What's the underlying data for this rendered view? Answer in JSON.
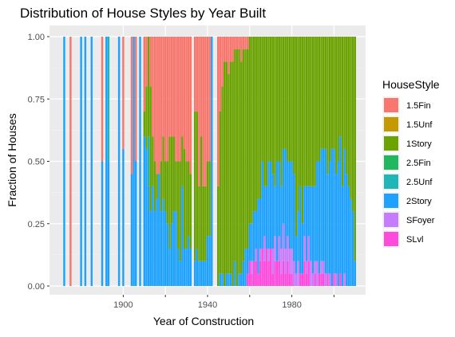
{
  "chart_data": {
    "type": "bar",
    "stacked": "fill",
    "title": "Distribution of House Styles by Year Built",
    "xlabel": "Year of Construction",
    "ylabel": "Fraction of Houses",
    "xlim": [
      1865,
      2015
    ],
    "ylim": [
      0,
      1
    ],
    "x_ticks": [
      1900,
      1920,
      1940,
      1960,
      1980,
      2000
    ],
    "x_tick_labels": [
      "1900",
      "",
      "1940",
      "",
      "1980",
      ""
    ],
    "y_ticks": [
      0,
      0.25,
      0.5,
      0.75,
      1
    ],
    "y_tick_labels": [
      "0.00",
      "0.25",
      "0.50",
      "0.75",
      "1.00"
    ],
    "grid": true,
    "legend_position": "right",
    "legend_title": "HouseStyle",
    "style_order": [
      "1.5Fin",
      "1.5Unf",
      "1Story",
      "2.5Fin",
      "2.5Unf",
      "2Story",
      "SFoyer",
      "SLvl"
    ],
    "series": [
      {
        "name": "1.5Fin",
        "color": "#F8766D"
      },
      {
        "name": "1.5Unf",
        "color": "#C49A00"
      },
      {
        "name": "1Story",
        "color": "#53B400"
      },
      {
        "name": "2.5Fin",
        "color": "#00C094"
      },
      {
        "name": "2.5Unf",
        "color": "#00B6EB"
      },
      {
        "name": "2Story",
        "color": "#A58AFF"
      },
      {
        "name": "SFoyer",
        "color": "#C77CFF"
      },
      {
        "name": "SLvl",
        "color": "#FB61D7"
      }
    ],
    "display_colors": {
      "1.5Fin": "#F8766D",
      "1.5Unf": "#C49A00",
      "1Story": "#6BA302",
      "2.5Fin": "#1FB85F",
      "2.5Unf": "#1FB6B9",
      "2Story": "#1EA2FF",
      "SFoyer": "#C77CFF",
      "SLvl": "#FF4BDD"
    },
    "bars": [
      {
        "year": 1872,
        "fractions": {
          "2Story": 1
        }
      },
      {
        "year": 1875,
        "fractions": {
          "1.5Fin": 1
        }
      },
      {
        "year": 1880,
        "fractions": {
          "2Story": 1
        }
      },
      {
        "year": 1882,
        "fractions": {
          "2Story": 1
        }
      },
      {
        "year": 1885,
        "fractions": {
          "2Story": 1
        }
      },
      {
        "year": 1890,
        "fractions": {
          "2Story": 0.5,
          "1.5Fin": 0.5
        }
      },
      {
        "year": 1892,
        "fractions": {
          "2Story": 1
        }
      },
      {
        "year": 1893,
        "fractions": {
          "2Story": 0.5,
          "2.5Unf": 0.5
        }
      },
      {
        "year": 1898,
        "fractions": {
          "2Story": 1
        }
      },
      {
        "year": 1900,
        "fractions": {
          "2Story": 0.55,
          "1.5Fin": 0.45
        }
      },
      {
        "year": 1904,
        "fractions": {
          "2Story": 0.45,
          "1.5Fin": 0.55
        }
      },
      {
        "year": 1905,
        "fractions": {
          "2Story": 1
        }
      },
      {
        "year": 1906,
        "fractions": {
          "2Story": 0.5,
          "1.5Fin": 0.5
        }
      },
      {
        "year": 1908,
        "fractions": {
          "2Story": 1
        }
      },
      {
        "year": 1910,
        "fractions": {
          "2Story": 0.6,
          "1.5Fin": 0.3,
          "1Story": 0.1
        }
      },
      {
        "year": 1911,
        "fractions": {
          "2Story": 0.55,
          "1Story": 0.25,
          "1.5Fin": 0.2
        }
      },
      {
        "year": 1912,
        "fractions": {
          "2Story": 0.4,
          "1Story": 0.4,
          "2.5Unf": 0.2
        }
      },
      {
        "year": 1913,
        "fractions": {
          "1Story": 0.5,
          "1.5Fin": 0.2,
          "2Story": 0.3
        }
      },
      {
        "year": 1914,
        "fractions": {
          "2Story": 0.4,
          "1Story": 0.2,
          "1.5Fin": 0.4
        }
      },
      {
        "year": 1915,
        "fractions": {
          "2Story": 0.3,
          "1Story": 0.2,
          "1.5Fin": 0.5
        }
      },
      {
        "year": 1916,
        "fractions": {
          "2Story": 0.35,
          "1Story": 0.1,
          "1.5Fin": 0.55
        }
      },
      {
        "year": 1917,
        "fractions": {
          "2Story": 0.45,
          "1.5Fin": 0.55
        }
      },
      {
        "year": 1918,
        "fractions": {
          "2Story": 0.3,
          "1Story": 0.2,
          "1.5Fin": 0.5
        }
      },
      {
        "year": 1919,
        "fractions": {
          "2Story": 0.35,
          "1Story": 0.25,
          "1.5Fin": 0.4
        }
      },
      {
        "year": 1920,
        "fractions": {
          "2Story": 0.3,
          "1Story": 0.2,
          "1.5Fin": 0.5
        }
      },
      {
        "year": 1921,
        "fractions": {
          "2Story": 0.25,
          "1Story": 0.25,
          "1.5Fin": 0.5
        }
      },
      {
        "year": 1922,
        "fractions": {
          "2Story": 0.15,
          "1Story": 0.45,
          "1.5Fin": 0.4
        }
      },
      {
        "year": 1923,
        "fractions": {
          "2Story": 0.25,
          "1Story": 0.35,
          "1.5Fin": 0.4
        }
      },
      {
        "year": 1924,
        "fractions": {
          "2Story": 0.3,
          "1Story": 0.3,
          "1.5Fin": 0.4
        }
      },
      {
        "year": 1925,
        "fractions": {
          "2Story": 0.3,
          "1Story": 0.2,
          "1.5Fin": 0.5
        }
      },
      {
        "year": 1926,
        "fractions": {
          "2Story": 0.15,
          "1Story": 0.35,
          "1.5Fin": 0.5
        }
      },
      {
        "year": 1927,
        "fractions": {
          "2Story": 0.1,
          "1Story": 0.4,
          "1.5Fin": 0.5
        }
      },
      {
        "year": 1928,
        "fractions": {
          "2Story": 0.4,
          "1Story": 0.2,
          "1.5Fin": 0.4
        }
      },
      {
        "year": 1929,
        "fractions": {
          "2Story": 0.15,
          "1Story": 0.4,
          "1.5Fin": 0.45
        }
      },
      {
        "year": 1930,
        "fractions": {
          "2Story": 0.15,
          "1Story": 0.35,
          "1.5Fin": 0.5
        }
      },
      {
        "year": 1931,
        "fractions": {
          "2Story": 0.2,
          "1Story": 0.3,
          "1.5Fin": 0.5
        }
      },
      {
        "year": 1932,
        "fractions": {
          "2Story": 0.15,
          "1Story": 0.3,
          "1.5Fin": 0.55
        }
      },
      {
        "year": 1934,
        "fractions": {
          "2Story": 0.1,
          "1Story": 0.6,
          "1.5Fin": 0.3
        }
      },
      {
        "year": 1935,
        "fractions": {
          "2Story": 0.15,
          "1Story": 0.55,
          "1.5Fin": 0.3
        }
      },
      {
        "year": 1936,
        "fractions": {
          "2Story": 0.1,
          "1Story": 0.3,
          "1.5Fin": 0.6
        }
      },
      {
        "year": 1937,
        "fractions": {
          "2Story": 0.1,
          "1Story": 0.5,
          "1.5Fin": 0.4
        }
      },
      {
        "year": 1938,
        "fractions": {
          "2Story": 0.1,
          "1Story": 0.3,
          "1.5Fin": 0.6
        }
      },
      {
        "year": 1939,
        "fractions": {
          "2Story": 0.1,
          "1Story": 0.3,
          "1.5Fin": 0.6
        }
      },
      {
        "year": 1940,
        "fractions": {
          "2Story": 0.2,
          "1Story": 0.3,
          "1.5Fin": 0.5
        }
      },
      {
        "year": 1941,
        "fractions": {
          "2Story": 0.2,
          "1Story": 0.3,
          "1.5Fin": 0.5
        }
      },
      {
        "year": 1942,
        "fractions": {
          "2Story": 1
        }
      },
      {
        "year": 1945,
        "fractions": {
          "1Story": 0.4,
          "1.5Fin": 0.6
        }
      },
      {
        "year": 1946,
        "fractions": {
          "2Story": 0.05,
          "1Story": 0.65,
          "1.5Fin": 0.3
        }
      },
      {
        "year": 1947,
        "fractions": {
          "2Story": 0.05,
          "1Story": 0.75,
          "1.5Fin": 0.2
        }
      },
      {
        "year": 1948,
        "fractions": {
          "1Story": 0.9,
          "1.5Fin": 0.1
        }
      },
      {
        "year": 1949,
        "fractions": {
          "2Story": 0.05,
          "1Story": 0.85,
          "1.5Fin": 0.1
        }
      },
      {
        "year": 1950,
        "fractions": {
          "2Story": 0.05,
          "1Story": 0.8,
          "1.5Fin": 0.15
        }
      },
      {
        "year": 1951,
        "fractions": {
          "2Story": 0.05,
          "1Story": 0.85,
          "1.5Fin": 0.1
        }
      },
      {
        "year": 1952,
        "fractions": {
          "1Story": 0.9,
          "1.5Fin": 0.1
        }
      },
      {
        "year": 1953,
        "fractions": {
          "2Story": 0.1,
          "1Story": 0.85,
          "1.5Fin": 0.05
        }
      },
      {
        "year": 1954,
        "fractions": {
          "1Story": 0.95,
          "1.5Fin": 0.05
        }
      },
      {
        "year": 1955,
        "fractions": {
          "2Story": 0.05,
          "1Story": 0.9,
          "1.5Fin": 0.05
        }
      },
      {
        "year": 1956,
        "fractions": {
          "2Story": 0.05,
          "1Story": 0.85,
          "1.5Fin": 0.1
        }
      },
      {
        "year": 1957,
        "fractions": {
          "2Story": 0.1,
          "1Story": 0.85,
          "1.5Fin": 0.05
        }
      },
      {
        "year": 1958,
        "fractions": {
          "2Story": 0.15,
          "1Story": 0.8,
          "1.5Fin": 0.05
        }
      },
      {
        "year": 1959,
        "fractions": {
          "SLvl": 0.05,
          "2Story": 0.1,
          "1Story": 0.8,
          "1.5Fin": 0.05
        }
      },
      {
        "year": 1960,
        "fractions": {
          "SLvl": 0.1,
          "2Story": 0.15,
          "1Story": 0.75
        }
      },
      {
        "year": 1961,
        "fractions": {
          "SLvl": 0.05,
          "SFoyer": 0.05,
          "2Story": 0.15,
          "1Story": 0.75
        }
      },
      {
        "year": 1962,
        "fractions": {
          "SLvl": 0.1,
          "2Story": 0.2,
          "1Story": 0.7
        }
      },
      {
        "year": 1963,
        "fractions": {
          "SLvl": 0.1,
          "SFoyer": 0.05,
          "2Story": 0.15,
          "1Story": 0.7
        }
      },
      {
        "year": 1964,
        "fractions": {
          "SLvl": 0.05,
          "2Story": 0.3,
          "1Story": 0.65
        }
      },
      {
        "year": 1965,
        "fractions": {
          "SLvl": 0.1,
          "SFoyer": 0.05,
          "2Story": 0.2,
          "1Story": 0.65
        }
      },
      {
        "year": 1966,
        "fractions": {
          "SLvl": 0.15,
          "2Story": 0.35,
          "1Story": 0.5
        }
      },
      {
        "year": 1967,
        "fractions": {
          "SLvl": 0.1,
          "SFoyer": 0.1,
          "2Story": 0.2,
          "1Story": 0.6
        }
      },
      {
        "year": 1968,
        "fractions": {
          "SLvl": 0.15,
          "2Story": 0.25,
          "1Story": 0.6
        }
      },
      {
        "year": 1969,
        "fractions": {
          "SLvl": 0.1,
          "SFoyer": 0.05,
          "2Story": 0.35,
          "1Story": 0.5
        }
      },
      {
        "year": 1970,
        "fractions": {
          "SLvl": 0.15,
          "2Story": 0.35,
          "1Story": 0.5
        }
      },
      {
        "year": 1971,
        "fractions": {
          "SLvl": 0.05,
          "SFoyer": 0.1,
          "2Story": 0.3,
          "1Story": 0.55
        }
      },
      {
        "year": 1972,
        "fractions": {
          "SLvl": 0.1,
          "SFoyer": 0.1,
          "2Story": 0.2,
          "1Story": 0.6
        }
      },
      {
        "year": 1973,
        "fractions": {
          "SLvl": 0.1,
          "2Story": 0.4,
          "1Story": 0.5
        }
      },
      {
        "year": 1974,
        "fractions": {
          "SLvl": 0.1,
          "SFoyer": 0.1,
          "2Story": 0.3,
          "1Story": 0.5
        }
      },
      {
        "year": 1975,
        "fractions": {
          "SLvl": 0.05,
          "SFoyer": 0.1,
          "2Story": 0.25,
          "1Story": 0.6
        }
      },
      {
        "year": 1976,
        "fractions": {
          "SLvl": 0.1,
          "SFoyer": 0.15,
          "2Story": 0.3,
          "1Story": 0.45
        }
      },
      {
        "year": 1977,
        "fractions": {
          "SLvl": 0.05,
          "SFoyer": 0.1,
          "2Story": 0.4,
          "1Story": 0.45
        }
      },
      {
        "year": 1978,
        "fractions": {
          "SLvl": 0.1,
          "SFoyer": 0.1,
          "2Story": 0.3,
          "1Story": 0.5
        }
      },
      {
        "year": 1979,
        "fractions": {
          "SLvl": 0.05,
          "SFoyer": 0.1,
          "2Story": 0.35,
          "1Story": 0.5
        }
      },
      {
        "year": 1980,
        "fractions": {
          "SLvl": 0.05,
          "SFoyer": 0.1,
          "2Story": 0.35,
          "1Story": 0.5
        }
      },
      {
        "year": 1981,
        "fractions": {
          "SFoyer": 0.1,
          "2Story": 0.35,
          "1Story": 0.55
        }
      },
      {
        "year": 1982,
        "fractions": {
          "SFoyer": 0.05,
          "2Story": 0.15,
          "1Story": 0.8
        }
      },
      {
        "year": 1983,
        "fractions": {
          "SFoyer": 0.1,
          "2Story": 0.2,
          "1Story": 0.7
        }
      },
      {
        "year": 1984,
        "fractions": {
          "SLvl": 0.05,
          "2Story": 0.35,
          "1Story": 0.6
        }
      },
      {
        "year": 1985,
        "fractions": {
          "SLvl": 0.05,
          "2Story": 0.2,
          "1Story": 0.75
        }
      },
      {
        "year": 1986,
        "fractions": {
          "SLvl": 0.1,
          "SFoyer": 0.1,
          "2Story": 0.2,
          "1Story": 0.6
        }
      },
      {
        "year": 1987,
        "fractions": {
          "SLvl": 0.05,
          "SFoyer": 0.05,
          "2Story": 0.3,
          "1Story": 0.6
        }
      },
      {
        "year": 1988,
        "fractions": {
          "SLvl": 0.1,
          "SFoyer": 0.1,
          "2Story": 0.2,
          "1Story": 0.6
        }
      },
      {
        "year": 1989,
        "fractions": {
          "SFoyer": 0.1,
          "2Story": 0.3,
          "1Story": 0.6
        }
      },
      {
        "year": 1990,
        "fractions": {
          "SFoyer": 0.05,
          "2Story": 0.35,
          "1Story": 0.6
        }
      },
      {
        "year": 1991,
        "fractions": {
          "SLvl": 0.05,
          "SFoyer": 0.05,
          "2Story": 0.3,
          "1Story": 0.6
        }
      },
      {
        "year": 1992,
        "fractions": {
          "SFoyer": 0.1,
          "2Story": 0.4,
          "1Story": 0.5
        }
      },
      {
        "year": 1993,
        "fractions": {
          "SLvl": 0.05,
          "2Story": 0.45,
          "1Story": 0.5
        }
      },
      {
        "year": 1994,
        "fractions": {
          "SLvl": 0.05,
          "SFoyer": 0.05,
          "2Story": 0.45,
          "1Story": 0.45
        }
      },
      {
        "year": 1995,
        "fractions": {
          "SLvl": 0.05,
          "SFoyer": 0.05,
          "2Story": 0.45,
          "1Story": 0.45
        }
      },
      {
        "year": 1996,
        "fractions": {
          "SFoyer": 0.05,
          "2Story": 0.5,
          "1Story": 0.45
        }
      },
      {
        "year": 1997,
        "fractions": {
          "SLvl": 0.05,
          "2Story": 0.4,
          "1Story": 0.55
        }
      },
      {
        "year": 1998,
        "fractions": {
          "SFoyer": 0.05,
          "2Story": 0.45,
          "1Story": 0.5
        }
      },
      {
        "year": 1999,
        "fractions": {
          "2Story": 0.55,
          "1Story": 0.45
        }
      },
      {
        "year": 2000,
        "fractions": {
          "SLvl": 0.05,
          "2Story": 0.5,
          "1Story": 0.45
        }
      },
      {
        "year": 2001,
        "fractions": {
          "SFoyer": 0.05,
          "2Story": 0.4,
          "1Story": 0.55
        }
      },
      {
        "year": 2002,
        "fractions": {
          "2Story": 0.5,
          "1Story": 0.5
        }
      },
      {
        "year": 2003,
        "fractions": {
          "SLvl": 0.05,
          "2Story": 0.55,
          "1Story": 0.4
        }
      },
      {
        "year": 2004,
        "fractions": {
          "2Story": 0.4,
          "1Story": 0.6
        }
      },
      {
        "year": 2005,
        "fractions": {
          "SFoyer": 0.05,
          "2Story": 0.5,
          "1Story": 0.45
        }
      },
      {
        "year": 2006,
        "fractions": {
          "2Story": 0.45,
          "1Story": 0.55
        }
      },
      {
        "year": 2007,
        "fractions": {
          "2Story": 0.4,
          "1Story": 0.6
        }
      },
      {
        "year": 2008,
        "fractions": {
          "2Story": 0.35,
          "1Story": 0.65
        }
      },
      {
        "year": 2009,
        "fractions": {
          "2Story": 0.3,
          "1Story": 0.7
        }
      },
      {
        "year": 2010,
        "fractions": {
          "2Story": 0.1,
          "1Story": 0.9
        }
      }
    ]
  },
  "legend": {
    "title": "HouseStyle",
    "items": [
      "1.5Fin",
      "1.5Unf",
      "1Story",
      "2.5Fin",
      "2.5Unf",
      "2Story",
      "SFoyer",
      "SLvl"
    ]
  }
}
